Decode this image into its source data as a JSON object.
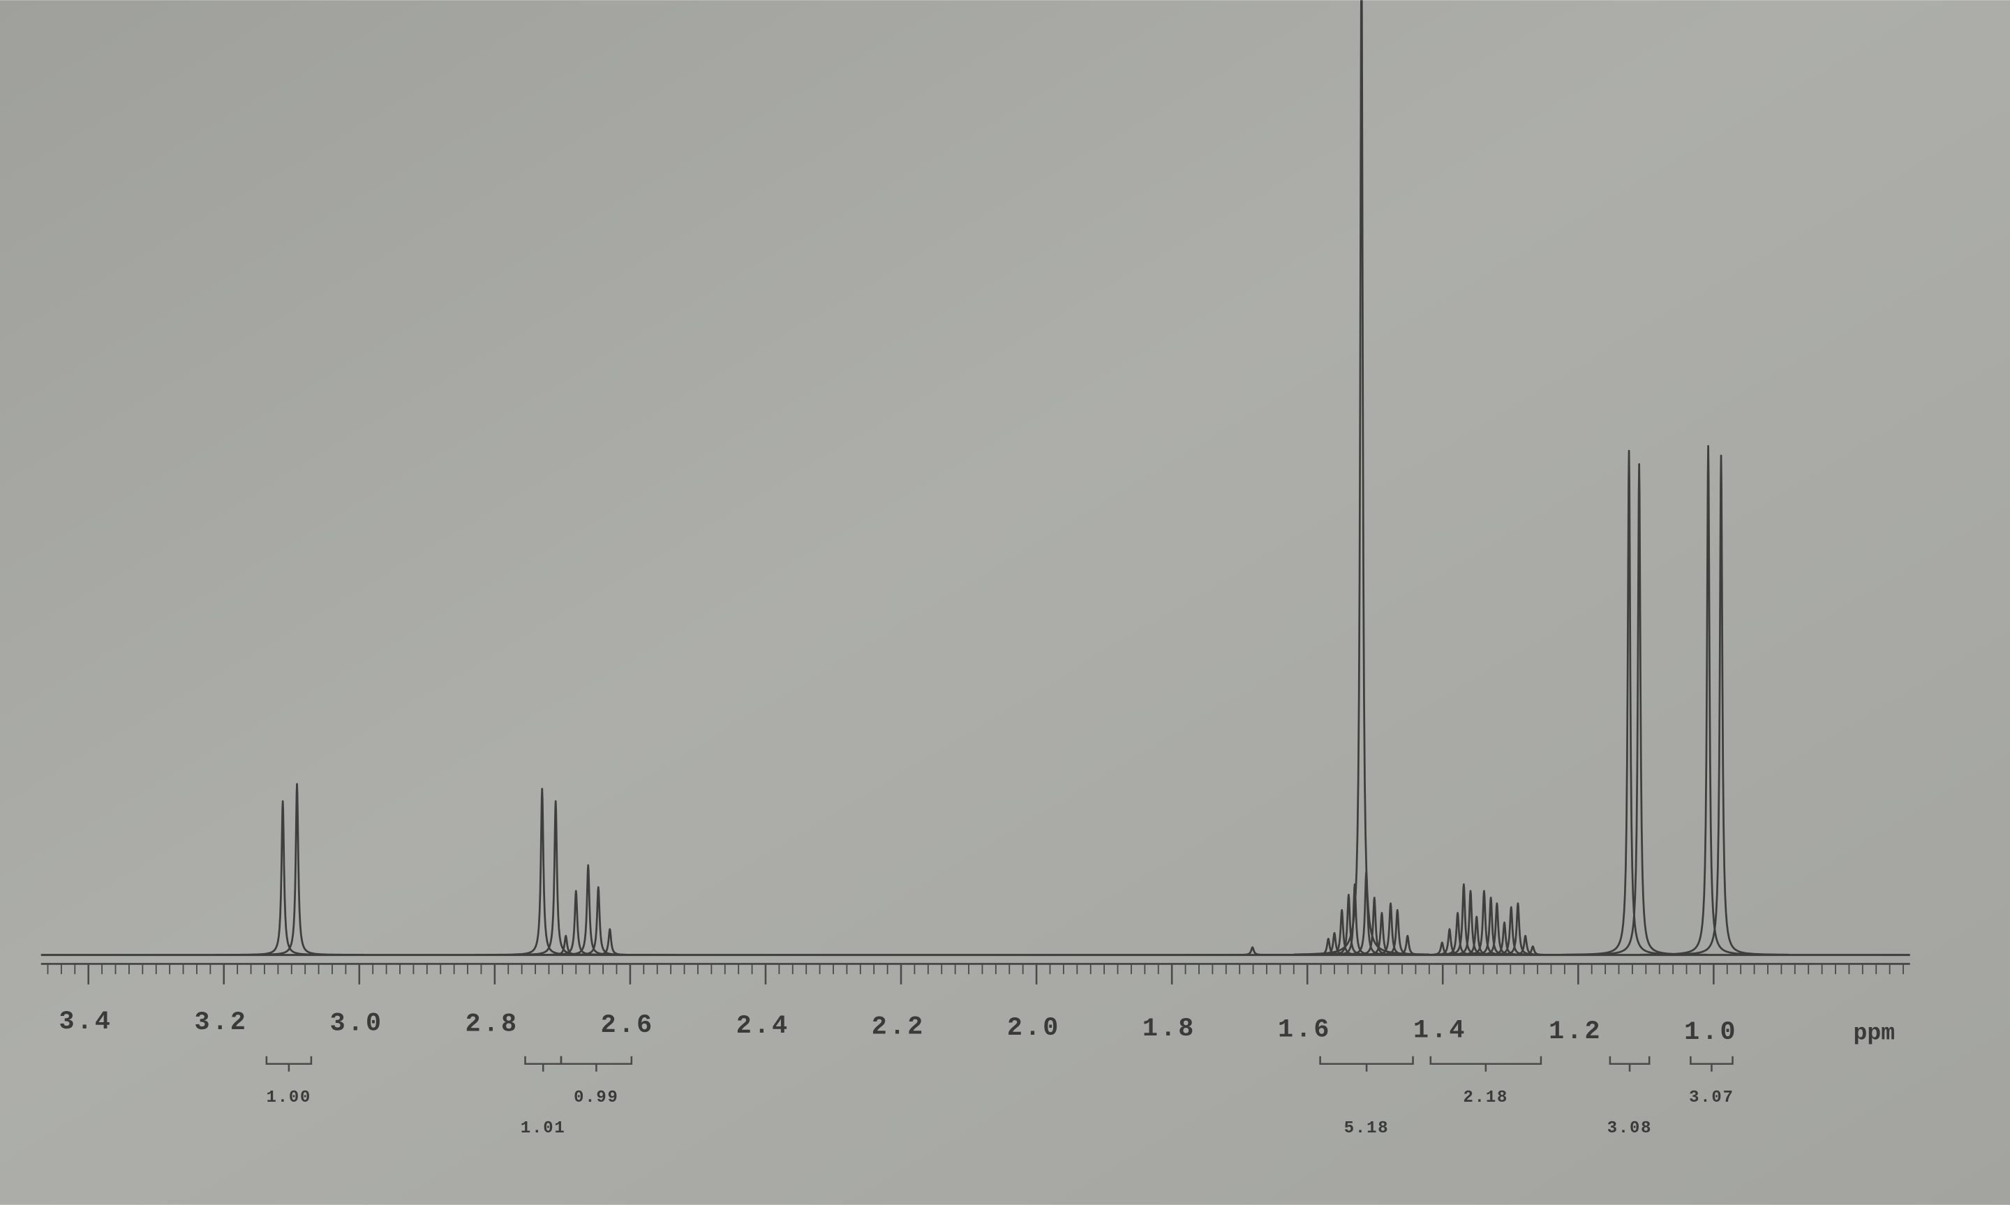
{
  "chart_data": {
    "type": "spectrum",
    "xlabel": "ppm",
    "x": [
      3.113,
      3.092,
      2.73,
      2.71,
      2.695,
      2.68,
      2.662,
      2.647,
      2.63,
      1.681,
      1.569,
      1.56,
      1.549,
      1.539,
      1.53,
      1.52,
      1.513,
      1.501,
      1.49,
      1.477,
      1.467,
      1.452,
      1.401,
      1.39,
      1.378,
      1.369,
      1.359,
      1.35,
      1.339,
      1.329,
      1.32,
      1.309,
      1.299,
      1.289,
      1.278,
      1.267,
      1.125,
      1.11,
      1.008,
      0.989
    ],
    "values": [
      16.1,
      17.9,
      17.4,
      16.1,
      2.0,
      6.7,
      9.4,
      7.1,
      2.7,
      0.8,
      1.7,
      2.3,
      4.7,
      6.3,
      7.4,
      105,
      8.7,
      6.0,
      4.4,
      5.4,
      4.7,
      2.0,
      1.3,
      2.7,
      4.4,
      7.4,
      6.7,
      4.0,
      6.7,
      6.0,
      5.4,
      3.4,
      5.0,
      5.4,
      2.0,
      0.9,
      52.8,
      51.4,
      53.3,
      52.3
    ],
    "color": "#3e3f3d",
    "xlim": [
      3.47,
      0.71
    ],
    "ylim": [
      0,
      100
    ],
    "xticks": [
      3.4,
      3.2,
      {
        "value": 3,
        "label": "3.0"
      },
      2.8,
      2.6,
      2.4,
      2.2,
      {
        "value": 2,
        "label": "2.0"
      },
      1.8,
      1.6,
      1.4,
      1.2,
      {
        "value": 1,
        "label": "1.0"
      }
    ],
    "minor_tick_step": 0.02,
    "integrals": [
      {
        "value": 1.0,
        "label": "1.00",
        "range": [
          3.137,
          3.071
        ]
      },
      {
        "value": 1.01,
        "label": "1.01",
        "range": [
          2.755,
          2.702
        ]
      },
      {
        "value": 0.99,
        "label": "0.99",
        "range": [
          2.702,
          2.598
        ]
      },
      {
        "value": 5.18,
        "label": "5.18",
        "range": [
          1.581,
          1.444
        ]
      },
      {
        "value": 2.18,
        "label": "2.18",
        "range": [
          1.418,
          1.255
        ]
      },
      {
        "value": 3.08,
        "label": "3.08",
        "range": [
          1.153,
          1.095
        ]
      },
      {
        "value": 3.07,
        "label": "3.07",
        "range": [
          1.034,
          0.972
        ]
      }
    ]
  }
}
